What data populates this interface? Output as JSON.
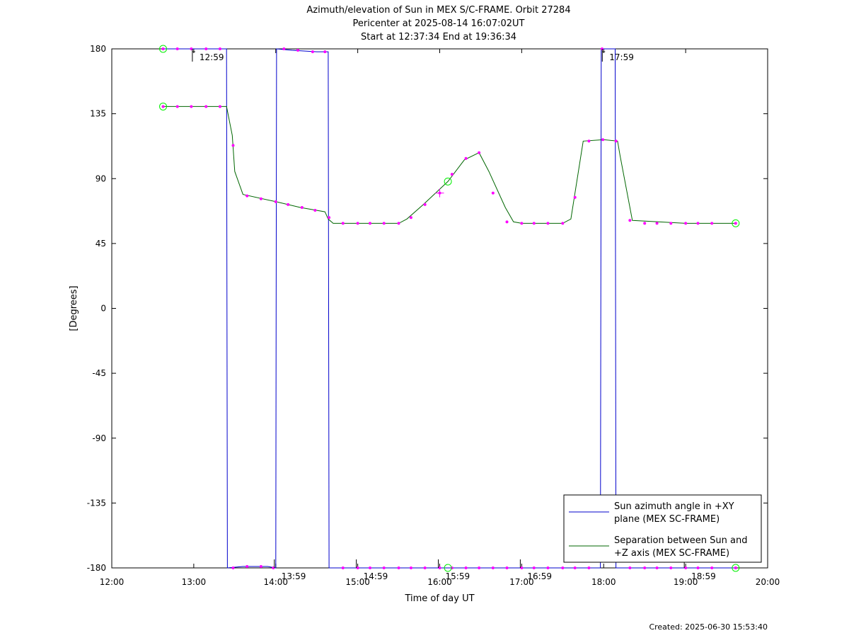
{
  "chart_data": {
    "type": "line",
    "title_lines": [
      "Azimuth/elevation of Sun in MEX S/C-FRAME.  Orbit 27284",
      "Pericenter at 2025-08-14 16:07:02UT",
      "Start at 12:37:34 End at 19:36:34"
    ],
    "xlabel": "Time of day UT",
    "ylabel": "[Degrees]",
    "xlim": [
      12.0,
      20.0
    ],
    "ylim": [
      -180,
      180
    ],
    "x_ticks": [
      12,
      13,
      14,
      15,
      16,
      17,
      18,
      19,
      20
    ],
    "x_tick_labels": [
      "12:00",
      "13:00",
      "14:00",
      "15:00",
      "16:00",
      "17:00",
      "18:00",
      "19:00",
      "20:00"
    ],
    "y_ticks": [
      180,
      135,
      90,
      45,
      0,
      -45,
      -90,
      -135,
      -180
    ],
    "y_tick_labels": [
      "180",
      "135",
      "90",
      "45",
      "0",
      "-45",
      "-90",
      "-135",
      "-180"
    ],
    "legend_position": "bottom-right",
    "series": [
      {
        "name_lines": [
          "Sun azimuth angle in +XY",
          "plane (MEX SC-FRAME)"
        ],
        "color": "#0000cc",
        "x": [
          12.626,
          13.0,
          13.4,
          13.405,
          13.41,
          13.6,
          13.9,
          14.0,
          14.005,
          14.01,
          14.2,
          14.5,
          14.6,
          14.64,
          14.645,
          14.65,
          17.0,
          17.96,
          17.965,
          17.97,
          18.14,
          18.145,
          18.15,
          19.61
        ],
        "y": [
          180,
          180,
          180,
          0,
          -180,
          -179,
          -179,
          -180,
          0,
          180,
          179,
          178,
          178,
          178,
          0,
          -180,
          -180,
          -180,
          0,
          180,
          180,
          0,
          -180,
          -180
        ]
      },
      {
        "name_lines": [
          "Separation between Sun and",
          "+Z axis (MEX SC-FRAME)"
        ],
        "color": "#006600",
        "x": [
          12.626,
          12.8,
          13.0,
          13.2,
          13.4,
          13.47,
          13.5,
          13.6,
          14.0,
          14.3,
          14.6,
          14.64,
          14.7,
          15.0,
          15.5,
          15.6,
          15.8,
          16.1,
          16.3,
          16.48,
          16.6,
          16.8,
          16.9,
          17.0,
          17.5,
          17.6,
          17.65,
          17.75,
          18.0,
          18.17,
          18.2,
          18.3,
          18.35,
          19.0,
          19.61
        ],
        "y": [
          140,
          140,
          140,
          140,
          140,
          120,
          95,
          79,
          74,
          70,
          67,
          62,
          59,
          59,
          59,
          62,
          72,
          88,
          103,
          108,
          95,
          70,
          60,
          59,
          59,
          62,
          80,
          116,
          117,
          116,
          106,
          76,
          61,
          59,
          59
        ]
      }
    ],
    "time_annotations": [
      {
        "label": "12:59",
        "x": 12.983,
        "y": 180,
        "pos": "top"
      },
      {
        "label": "13:59",
        "x": 13.983,
        "y": -180,
        "pos": "bottom"
      },
      {
        "label": "14:59",
        "x": 14.983,
        "y": -180,
        "pos": "bottom"
      },
      {
        "label": "15:59",
        "x": 15.983,
        "y": -180,
        "pos": "bottom"
      },
      {
        "label": "16:59",
        "x": 16.983,
        "y": -180,
        "pos": "bottom"
      },
      {
        "label": "17:59",
        "x": 17.983,
        "y": 180,
        "pos": "top"
      },
      {
        "label": "18:59",
        "x": 18.983,
        "y": -180,
        "pos": "bottom"
      }
    ],
    "circle_markers": [
      {
        "x": 12.626,
        "y": 180
      },
      {
        "x": 12.626,
        "y": 140
      },
      {
        "x": 16.1,
        "y": 88
      },
      {
        "x": 16.1,
        "y": -180
      },
      {
        "x": 19.61,
        "y": 59
      },
      {
        "x": 19.61,
        "y": -180
      }
    ],
    "cross_markers": [
      {
        "x": 16.0,
        "y": 80
      }
    ],
    "dot_markers_green": [
      {
        "x": 12.626,
        "y": 140
      },
      {
        "x": 12.8,
        "y": 140
      },
      {
        "x": 12.97,
        "y": 140
      },
      {
        "x": 13.15,
        "y": 140
      },
      {
        "x": 13.32,
        "y": 140
      },
      {
        "x": 13.48,
        "y": 113
      },
      {
        "x": 13.65,
        "y": 78
      },
      {
        "x": 13.82,
        "y": 76
      },
      {
        "x": 14.0,
        "y": 74
      },
      {
        "x": 14.15,
        "y": 72
      },
      {
        "x": 14.32,
        "y": 70
      },
      {
        "x": 14.48,
        "y": 68
      },
      {
        "x": 14.65,
        "y": 63
      },
      {
        "x": 14.82,
        "y": 59
      },
      {
        "x": 15.0,
        "y": 59
      },
      {
        "x": 15.15,
        "y": 59
      },
      {
        "x": 15.32,
        "y": 59
      },
      {
        "x": 15.5,
        "y": 59
      },
      {
        "x": 15.65,
        "y": 63
      },
      {
        "x": 15.82,
        "y": 72
      },
      {
        "x": 16.0,
        "y": 80
      },
      {
        "x": 16.15,
        "y": 93
      },
      {
        "x": 16.32,
        "y": 104
      },
      {
        "x": 16.48,
        "y": 108
      },
      {
        "x": 16.65,
        "y": 80
      },
      {
        "x": 16.82,
        "y": 60
      },
      {
        "x": 17.0,
        "y": 59
      },
      {
        "x": 17.15,
        "y": 59
      },
      {
        "x": 17.32,
        "y": 59
      },
      {
        "x": 17.5,
        "y": 59
      },
      {
        "x": 17.65,
        "y": 77
      },
      {
        "x": 17.82,
        "y": 116
      },
      {
        "x": 17.99,
        "y": 117
      },
      {
        "x": 18.15,
        "y": 116
      },
      {
        "x": 18.32,
        "y": 61
      },
      {
        "x": 18.5,
        "y": 59
      },
      {
        "x": 18.65,
        "y": 59
      },
      {
        "x": 18.82,
        "y": 59
      },
      {
        "x": 19.0,
        "y": 59
      },
      {
        "x": 19.15,
        "y": 59
      },
      {
        "x": 19.32,
        "y": 59
      },
      {
        "x": 19.61,
        "y": 59
      }
    ],
    "dot_markers_blue": [
      {
        "x": 12.626,
        "y": 180
      },
      {
        "x": 12.8,
        "y": 180
      },
      {
        "x": 12.97,
        "y": 180
      },
      {
        "x": 13.15,
        "y": 180
      },
      {
        "x": 13.32,
        "y": 180
      },
      {
        "x": 13.48,
        "y": -180
      },
      {
        "x": 13.65,
        "y": -179
      },
      {
        "x": 13.82,
        "y": -179
      },
      {
        "x": 13.97,
        "y": -180
      },
      {
        "x": 14.1,
        "y": 180
      },
      {
        "x": 14.27,
        "y": 179
      },
      {
        "x": 14.45,
        "y": 178
      },
      {
        "x": 14.6,
        "y": 178
      },
      {
        "x": 14.82,
        "y": -180
      },
      {
        "x": 15.0,
        "y": -180
      },
      {
        "x": 15.15,
        "y": -180
      },
      {
        "x": 15.32,
        "y": -180
      },
      {
        "x": 15.5,
        "y": -180
      },
      {
        "x": 15.65,
        "y": -180
      },
      {
        "x": 15.82,
        "y": -180
      },
      {
        "x": 16.0,
        "y": -180
      },
      {
        "x": 16.15,
        "y": -180
      },
      {
        "x": 16.32,
        "y": -180
      },
      {
        "x": 16.48,
        "y": -180
      },
      {
        "x": 16.65,
        "y": -180
      },
      {
        "x": 16.82,
        "y": -180
      },
      {
        "x": 17.0,
        "y": -180
      },
      {
        "x": 17.15,
        "y": -180
      },
      {
        "x": 17.32,
        "y": -180
      },
      {
        "x": 17.5,
        "y": -180
      },
      {
        "x": 17.65,
        "y": -180
      },
      {
        "x": 17.82,
        "y": -180
      },
      {
        "x": 17.98,
        "y": 180
      },
      {
        "x": 18.32,
        "y": -180
      },
      {
        "x": 18.5,
        "y": -180
      },
      {
        "x": 18.65,
        "y": -180
      },
      {
        "x": 18.82,
        "y": -180
      },
      {
        "x": 19.0,
        "y": -180
      },
      {
        "x": 19.15,
        "y": -180
      },
      {
        "x": 19.32,
        "y": -180
      },
      {
        "x": 19.61,
        "y": -180
      }
    ]
  },
  "footer": "Created: 2025-06-30 15:53:40",
  "colors": {
    "marker_magenta": "#ff00ff",
    "circle_green": "#00ee00",
    "frame": "#000000"
  }
}
